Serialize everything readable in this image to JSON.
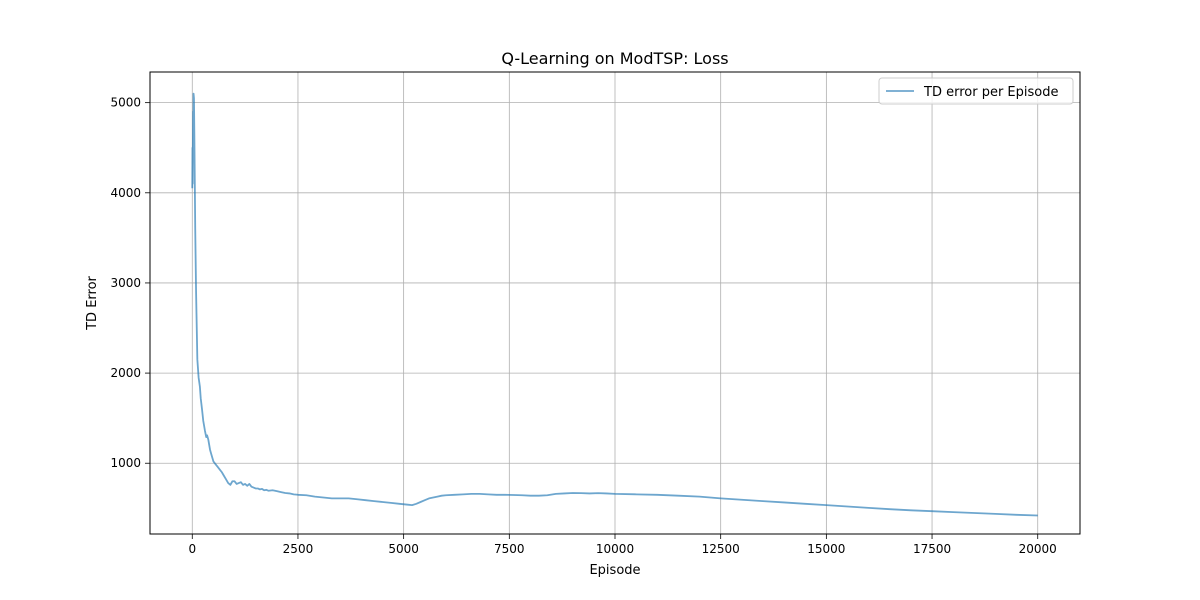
{
  "chart_data": {
    "type": "line",
    "title": "Q-Learning on ModTSP: Loss",
    "xlabel": "Episode",
    "ylabel": "TD Error",
    "xlim": [
      -1000,
      21000
    ],
    "ylim": [
      215,
      5340
    ],
    "xticks": [
      0,
      2500,
      5000,
      7500,
      10000,
      12500,
      15000,
      17500,
      20000
    ],
    "yticks": [
      1000,
      2000,
      3000,
      4000,
      5000
    ],
    "xtick_labels": [
      "0",
      "2500",
      "5000",
      "7500",
      "10000",
      "12500",
      "15000",
      "17500",
      "20000"
    ],
    "ytick_labels": [
      "1000",
      "2000",
      "3000",
      "4000",
      "5000"
    ],
    "grid": true,
    "legend": {
      "position": "top-right",
      "entries": [
        "TD error per Episode"
      ]
    },
    "series": [
      {
        "name": "TD error per Episode",
        "color": "#1f77b4",
        "opacity": 0.65,
        "x": [
          0,
          5,
          10,
          15,
          20,
          25,
          30,
          40,
          50,
          60,
          70,
          80,
          90,
          100,
          120,
          150,
          180,
          200,
          230,
          260,
          300,
          330,
          350,
          380,
          420,
          450,
          500,
          550,
          600,
          650,
          700,
          750,
          800,
          850,
          900,
          950,
          1000,
          1050,
          1100,
          1150,
          1200,
          1250,
          1300,
          1350,
          1400,
          1450,
          1500,
          1550,
          1600,
          1650,
          1700,
          1750,
          1800,
          1900,
          2000,
          2100,
          2200,
          2300,
          2400,
          2500,
          2700,
          2900,
          3100,
          3300,
          3500,
          3700,
          3900,
          4100,
          4300,
          4500,
          4700,
          4900,
          5100,
          5200,
          5300,
          5400,
          5500,
          5600,
          5700,
          5800,
          5900,
          6000,
          6200,
          6400,
          6600,
          6800,
          7000,
          7200,
          7400,
          7600,
          7800,
          8000,
          8200,
          8400,
          8600,
          8800,
          9000,
          9200,
          9400,
          9600,
          9800,
          10000,
          10500,
          11000,
          11500,
          12000,
          12500,
          13000,
          13500,
          14000,
          14500,
          15000,
          15500,
          16000,
          16500,
          17000,
          17500,
          18000,
          18500,
          19000,
          19500,
          20000
        ],
        "y": [
          4050,
          4500,
          4100,
          4600,
          4900,
          4400,
          5100,
          5050,
          4600,
          4100,
          3600,
          3250,
          2900,
          2650,
          2150,
          1950,
          1850,
          1720,
          1600,
          1470,
          1360,
          1290,
          1310,
          1260,
          1150,
          1100,
          1020,
          990,
          960,
          930,
          900,
          860,
          820,
          780,
          760,
          800,
          800,
          770,
          780,
          790,
          760,
          770,
          750,
          770,
          740,
          730,
          720,
          720,
          710,
          715,
          700,
          705,
          695,
          700,
          690,
          680,
          670,
          665,
          655,
          650,
          645,
          630,
          620,
          610,
          610,
          610,
          600,
          590,
          580,
          570,
          560,
          550,
          540,
          535,
          550,
          570,
          590,
          610,
          620,
          630,
          640,
          645,
          650,
          655,
          660,
          660,
          655,
          650,
          650,
          648,
          645,
          640,
          640,
          645,
          660,
          665,
          670,
          668,
          665,
          668,
          665,
          660,
          655,
          650,
          640,
          630,
          610,
          595,
          580,
          565,
          550,
          535,
          520,
          505,
          490,
          478,
          468,
          458,
          448,
          438,
          428,
          420
        ]
      }
    ]
  }
}
